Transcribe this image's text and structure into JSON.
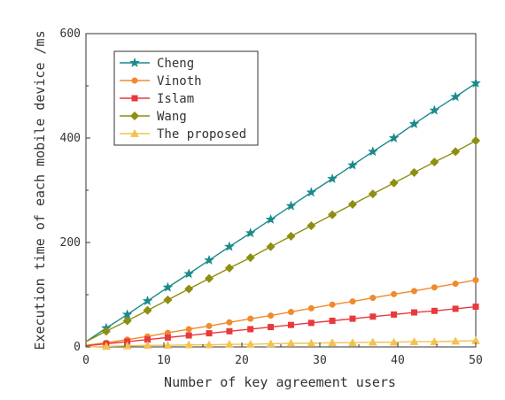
{
  "chart_data": {
    "type": "line",
    "xlabel": "Number of key agreement users",
    "ylabel": "Execution time of each mobile device /ms",
    "xlim": [
      0,
      50
    ],
    "ylim": [
      0,
      600
    ],
    "x_ticks": [
      0,
      10,
      20,
      30,
      40,
      50
    ],
    "y_ticks": [
      0,
      200,
      400,
      600
    ],
    "grid": false,
    "legend_position": "top-left",
    "x": [
      0,
      2.6,
      5.3,
      7.9,
      10.5,
      13.2,
      15.8,
      18.4,
      21.1,
      23.7,
      26.3,
      28.9,
      31.6,
      34.2,
      36.8,
      39.5,
      42.1,
      44.7,
      47.4,
      50
    ],
    "series": [
      {
        "name": "Cheng",
        "color": "#1a8a8c",
        "marker": "star",
        "values": [
          10,
          36,
          62,
          88,
          114,
          140,
          166,
          192,
          218,
          244,
          270,
          296,
          322,
          348,
          374,
          400,
          427,
          453,
          479,
          505
        ]
      },
      {
        "name": "Vinoth",
        "color": "#f08a2c",
        "marker": "circle",
        "values": [
          3,
          8,
          14,
          20,
          27,
          34,
          40,
          47,
          54,
          60,
          67,
          74,
          81,
          87,
          94,
          101,
          107,
          114,
          121,
          128
        ]
      },
      {
        "name": "Islam",
        "color": "#e8393c",
        "marker": "square",
        "values": [
          2,
          6,
          10,
          14,
          18,
          22,
          26,
          30,
          34,
          38,
          42,
          46,
          50,
          54,
          58,
          62,
          66,
          69,
          73,
          77
        ]
      },
      {
        "name": "Wang",
        "color": "#8e8e10",
        "marker": "diamond",
        "values": [
          10,
          30,
          50,
          70,
          90,
          111,
          131,
          151,
          171,
          192,
          212,
          232,
          253,
          273,
          293,
          314,
          334,
          354,
          374,
          395
        ]
      },
      {
        "name": "The proposed",
        "color": "#f3c24f",
        "marker": "triangle",
        "values": [
          0,
          1,
          2,
          3,
          3,
          4,
          4,
          5,
          5,
          6,
          7,
          7,
          8,
          8,
          9,
          9,
          10,
          10,
          11,
          12
        ]
      }
    ]
  }
}
